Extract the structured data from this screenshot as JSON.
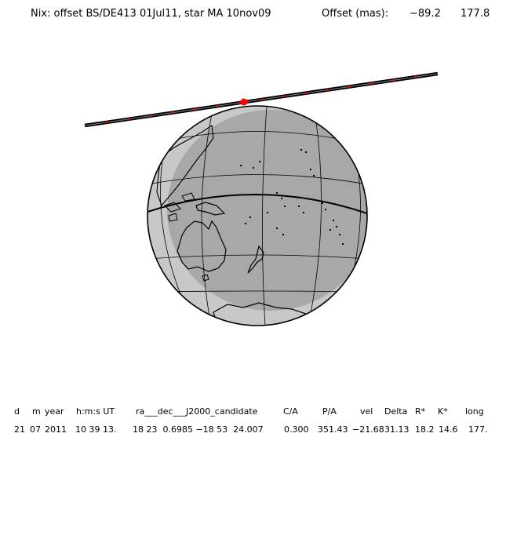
{
  "title": {
    "text": "Nix: offset BS/DE413 01Jul11, star MA 10nov09",
    "offset_label": "Offset (mas):",
    "offset_x": "−89.2",
    "offset_y": "177.8"
  },
  "table": {
    "headers": [
      "d",
      "m",
      "year",
      "h:m:s UT",
      "ra___dec___J2000_candidate",
      "C/A",
      "P/A",
      "vel",
      "Delta",
      "R*",
      "K*",
      "long"
    ],
    "values": [
      "21",
      "07",
      "2011",
      "10 39 13.",
      "18 23  0.6985 −18 53  24.007",
      "0.300",
      "351.43",
      "−21.68",
      "31.13",
      "18.2",
      "14.6",
      "177."
    ]
  },
  "colors": {
    "globe_day": "#c8c8c8",
    "globe_night": "#a8a8a8",
    "track": "#000000",
    "track_dots": "#ff0000"
  }
}
